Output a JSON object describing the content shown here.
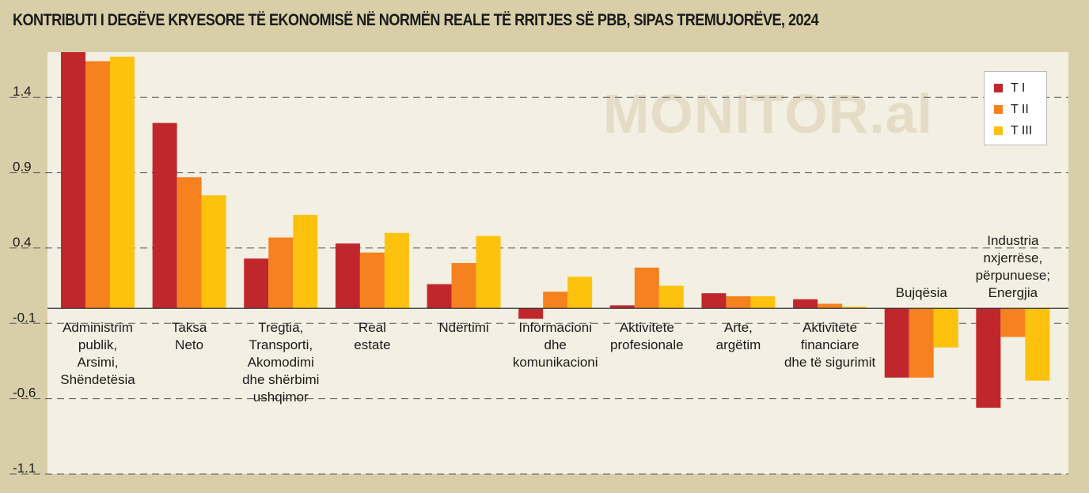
{
  "title": "KONTRIBUTI I DEGËVE KRYESORE TË EKONOMISË NË NORMËN REALE TË RRITJES SË PBB, SIPAS TREMUJORËVE, 2024",
  "watermark": "MONITOR.al",
  "colors": {
    "background": "#d8cfa8",
    "plot": "#f3efe2",
    "series": [
      "#c0272d",
      "#f5821f",
      "#fdc20d"
    ]
  },
  "chart_data": {
    "type": "bar",
    "categories": [
      [
        "Administrim",
        "publik,",
        "Arsimi,",
        "Shëndetësia"
      ],
      [
        "Taksa",
        "Neto"
      ],
      [
        "Tregtia,",
        "Transporti,",
        "Akomodimi",
        "dhe shërbimi",
        "ushqimor"
      ],
      [
        "Real",
        "estate"
      ],
      [
        "Ndërtimi"
      ],
      [
        "Informacioni",
        "dhe",
        "komunikacioni"
      ],
      [
        "Aktivitete",
        "profesionale"
      ],
      [
        "Arte,",
        "argëtim"
      ],
      [
        "Aktivitete",
        "financiare",
        "dhe të sigurimit"
      ],
      [
        "Bujqësia"
      ],
      [
        "Industria",
        "nxjerrëse,",
        "përpunuese;",
        "Energjia"
      ]
    ],
    "series": [
      {
        "name": "T I",
        "values": [
          1.7,
          1.23,
          0.33,
          0.43,
          0.16,
          -0.07,
          0.02,
          0.1,
          0.06,
          -0.46,
          -0.66
        ]
      },
      {
        "name": "T II",
        "values": [
          1.64,
          0.87,
          0.47,
          0.37,
          0.3,
          0.11,
          0.27,
          0.08,
          0.03,
          -0.46,
          -0.19
        ]
      },
      {
        "name": "T III",
        "values": [
          1.67,
          0.75,
          0.62,
          0.5,
          0.48,
          0.21,
          0.15,
          0.08,
          0.01,
          -0.26,
          -0.48
        ]
      }
    ],
    "yticks": [
      "1.4",
      "0.9",
      "0.4",
      "-0.1",
      "-0.6",
      "-1.1"
    ],
    "ylim": [
      -1.1,
      1.7
    ],
    "grid": true,
    "legend_position": "top-right"
  }
}
